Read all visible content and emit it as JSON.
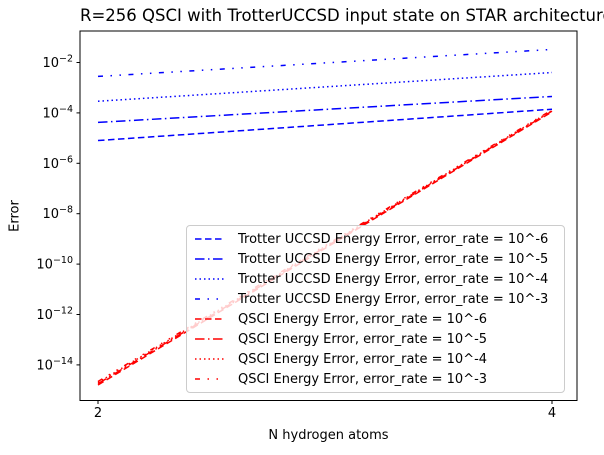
{
  "figure": {
    "kind": "matplotlib-line-chart"
  },
  "chart_data": {
    "type": "line",
    "title": "R=256 QSCI with TrotterUCCSD input state on STAR architecture",
    "xlabel": "N hydrogen atoms",
    "ylabel": "Error",
    "x_scale": "linear",
    "y_scale": "log",
    "xlim": [
      1.9,
      4.1
    ],
    "ylim": [
      4.5e-16,
      0.17
    ],
    "xticks": [
      2,
      4
    ],
    "ytick_exponents": [
      -2,
      -4,
      -6,
      -8,
      -10,
      -12,
      -14
    ],
    "grid": false,
    "legend_position": "center-right-inside",
    "colors": {
      "trotter": "#0000ff",
      "qsci": "#ff0000"
    },
    "series": [
      {
        "name": "Trotter UCCSD Energy Error, error_rate = 10^-6",
        "color": "#0000ff",
        "style": "dashed",
        "x": [
          2,
          4
        ],
        "y": [
          8e-06,
          0.00014
        ]
      },
      {
        "name": "Trotter UCCSD Energy Error, error_rate = 10^-5",
        "color": "#0000ff",
        "style": "dashdot",
        "x": [
          2,
          4
        ],
        "y": [
          4.2e-05,
          0.00045
        ]
      },
      {
        "name": "Trotter UCCSD Energy Error, error_rate = 10^-4",
        "color": "#0000ff",
        "style": "dotted",
        "x": [
          2,
          4
        ],
        "y": [
          0.00029,
          0.004
        ]
      },
      {
        "name": "Trotter UCCSD Energy Error, error_rate = 10^-3",
        "color": "#0000ff",
        "style": "dashdotdot",
        "x": [
          2,
          4
        ],
        "y": [
          0.0028,
          0.033
        ]
      },
      {
        "name": "QSCI Energy Error, error_rate = 10^-6",
        "color": "#ff0000",
        "style": "dashed",
        "x": [
          2,
          4
        ],
        "y": [
          1.6e-15,
          0.00011
        ]
      },
      {
        "name": "QSCI Energy Error, error_rate = 10^-5",
        "color": "#ff0000",
        "style": "dashdot",
        "x": [
          2,
          4
        ],
        "y": [
          1.8e-15,
          0.000118
        ]
      },
      {
        "name": "QSCI Energy Error, error_rate = 10^-4",
        "color": "#ff0000",
        "style": "dotted",
        "x": [
          2,
          4
        ],
        "y": [
          2e-15,
          0.000125
        ]
      },
      {
        "name": "QSCI Energy Error, error_rate = 10^-3",
        "color": "#ff0000",
        "style": "dashdotdot",
        "x": [
          2,
          4
        ],
        "y": [
          2.2e-15,
          0.000132
        ]
      }
    ]
  }
}
